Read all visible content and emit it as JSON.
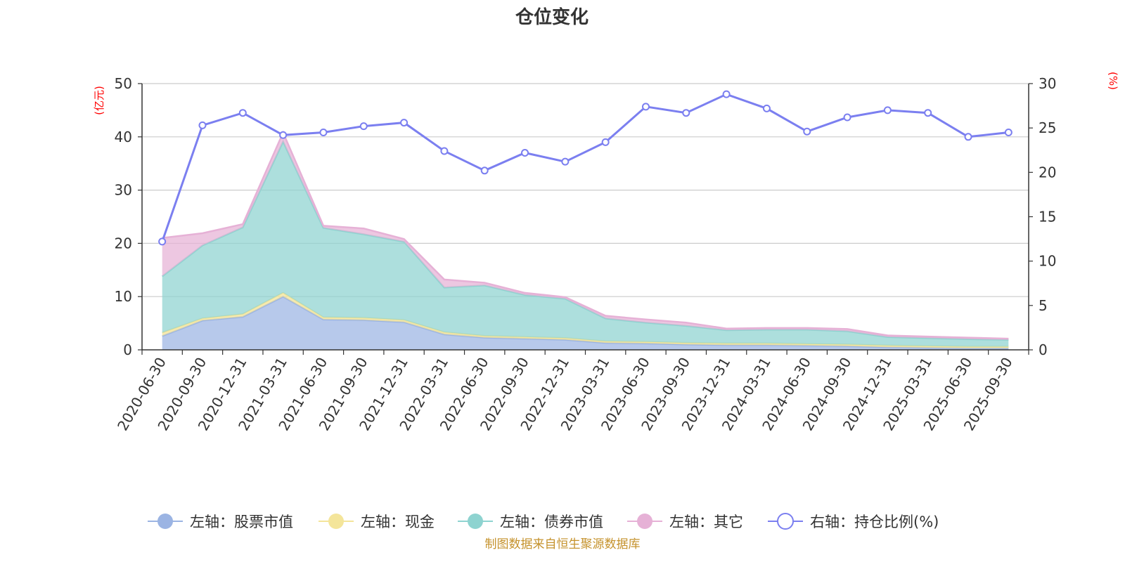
{
  "chart_data": {
    "type": "area",
    "title": "仓位变化",
    "left_axis": {
      "unit": "(亿元)",
      "ticks": [
        "0",
        "10",
        "20",
        "30",
        "40",
        "50"
      ],
      "ylim": [
        0,
        50
      ]
    },
    "right_axis": {
      "unit": "(%)",
      "ticks": [
        "0",
        "5",
        "10",
        "15",
        "20",
        "25",
        "30"
      ],
      "ylim": [
        0,
        30
      ]
    },
    "categories": [
      "2020-06-30",
      "2020-09-30",
      "2020-12-31",
      "2021-03-31",
      "2021-06-30",
      "2021-09-30",
      "2021-12-31",
      "2022-03-31",
      "2022-06-30",
      "2022-09-30",
      "2022-12-31",
      "2023-03-31",
      "2023-06-30",
      "2023-09-30",
      "2023-12-31",
      "2024-03-31",
      "2024-06-30",
      "2024-09-30",
      "2024-12-31",
      "2025-03-31",
      "2025-06-30",
      "2025-09-30"
    ],
    "series": [
      {
        "name": "左轴：股票市值",
        "axis": "left",
        "stack": true,
        "color": "#9bb4e3",
        "values": [
          2.6,
          5.5,
          6.2,
          10.0,
          5.7,
          5.6,
          5.2,
          2.9,
          2.3,
          2.1,
          1.9,
          1.3,
          1.2,
          1.0,
          0.9,
          0.9,
          0.8,
          0.7,
          0.5,
          0.4,
          0.3,
          0.3
        ]
      },
      {
        "name": "左轴：现金",
        "axis": "left",
        "stack": true,
        "color": "#f4e59a",
        "values": [
          0.6,
          0.4,
          0.5,
          0.7,
          0.4,
          0.4,
          0.4,
          0.4,
          0.3,
          0.3,
          0.3,
          0.3,
          0.3,
          0.3,
          0.3,
          0.3,
          0.3,
          0.3,
          0.3,
          0.3,
          0.3,
          0.3
        ]
      },
      {
        "name": "左轴：债券市值",
        "axis": "left",
        "stack": true,
        "color": "#8ed3d0",
        "values": [
          10.6,
          13.7,
          16.3,
          28.4,
          16.8,
          15.7,
          14.7,
          8.4,
          9.5,
          7.9,
          7.4,
          4.3,
          3.6,
          3.2,
          2.5,
          2.6,
          2.7,
          2.5,
          1.6,
          1.5,
          1.4,
          1.3
        ]
      },
      {
        "name": "左轴：其它",
        "axis": "left",
        "stack": true,
        "color": "#e6b1d6",
        "values": [
          7.2,
          2.3,
          0.6,
          1.7,
          0.4,
          1.1,
          0.5,
          1.5,
          0.5,
          0.4,
          0.3,
          0.5,
          0.6,
          0.6,
          0.3,
          0.3,
          0.3,
          0.4,
          0.3,
          0.3,
          0.3,
          0.2
        ]
      },
      {
        "name": "右轴：持仓比例(%)",
        "axis": "right",
        "stack": false,
        "color": "#7b7ff0",
        "values": [
          12.2,
          25.3,
          26.7,
          24.2,
          24.5,
          25.2,
          25.6,
          22.4,
          20.2,
          22.2,
          21.2,
          23.4,
          27.4,
          26.7,
          28.8,
          27.2,
          24.6,
          26.2,
          27.0,
          26.7,
          24.0,
          24.5
        ]
      }
    ]
  },
  "footer": {
    "source": "制图数据来自恒生聚源数据库"
  },
  "colors": {
    "left_unit": "#ff0000",
    "right_unit": "#ff0000",
    "source": "#c5922c",
    "grid": "#cccccc",
    "axis": "#333333"
  }
}
